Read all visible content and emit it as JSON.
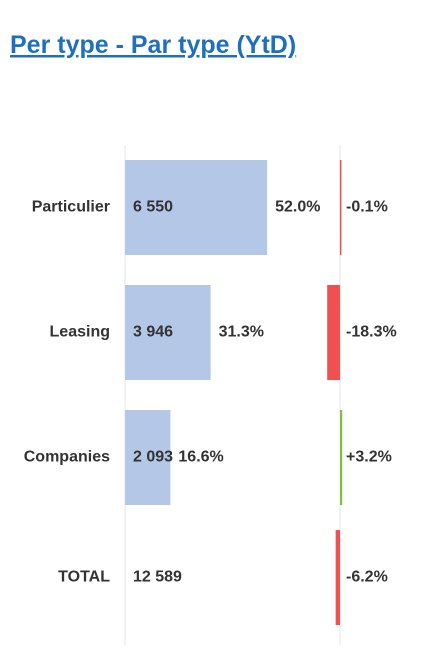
{
  "chart_data": {
    "type": "bar",
    "title": "Per type - Par type (YtD)",
    "categories": [
      "Particulier",
      "Leasing",
      "Companies"
    ],
    "values": [
      6550,
      3946,
      2093
    ],
    "value_labels": [
      "6 550",
      "3 946",
      "2 093"
    ],
    "shares": [
      52.0,
      31.3,
      16.6
    ],
    "share_labels": [
      "52.0%",
      "31.3%",
      "16.6%"
    ],
    "changes": [
      -0.1,
      -18.3,
      3.2
    ],
    "change_labels": [
      "-0.1%",
      "-18.3%",
      "+3.2%"
    ],
    "total": {
      "label": "TOTAL",
      "value": 12589,
      "value_label": "12 589",
      "change": -6.2,
      "change_label": "-6.2%"
    },
    "xlim": [
      0,
      10000
    ],
    "x2lim": [
      -30,
      30
    ],
    "color": "#b4c7e7",
    "negative_color": "#f05050",
    "positive_color": "#80c040"
  }
}
